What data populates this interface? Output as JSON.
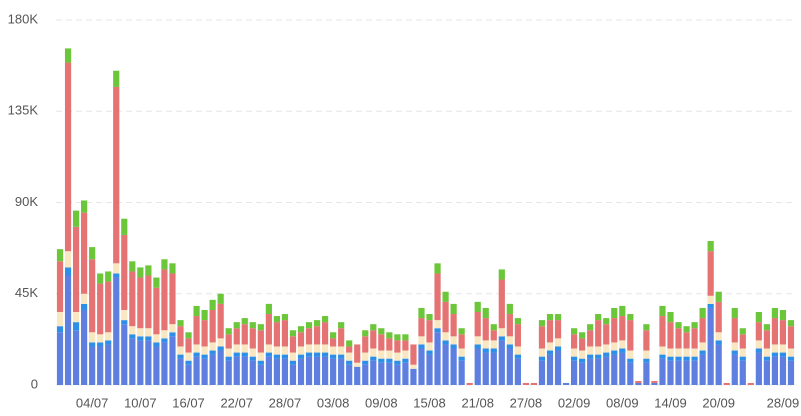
{
  "chart_data": {
    "type": "stacked_bar",
    "categories": [
      null,
      null,
      null,
      null,
      "04/07",
      null,
      null,
      null,
      null,
      null,
      "10/07",
      null,
      null,
      null,
      null,
      null,
      "16/07",
      null,
      null,
      null,
      null,
      null,
      "22/07",
      null,
      null,
      null,
      null,
      null,
      "28/07",
      null,
      null,
      null,
      null,
      null,
      "03/08",
      null,
      null,
      null,
      null,
      null,
      "09/08",
      null,
      null,
      null,
      null,
      null,
      "15/08",
      null,
      null,
      null,
      null,
      null,
      "21/08",
      null,
      null,
      null,
      null,
      null,
      "27/08",
      null,
      null,
      null,
      null,
      null,
      "02/09",
      null,
      null,
      null,
      null,
      null,
      "08/09",
      null,
      null,
      null,
      null,
      null,
      "14/09",
      null,
      null,
      null,
      null,
      null,
      "20/09",
      null,
      null,
      null,
      null,
      null,
      null,
      null,
      "28/09",
      null
    ],
    "series": [
      {
        "color": "#5e7fe0",
        "values": [
          26,
          54,
          27,
          37,
          19,
          19,
          20,
          53,
          30,
          23,
          22,
          22,
          19,
          21,
          24,
          13,
          10,
          14,
          13,
          15,
          17,
          12,
          14,
          14,
          12,
          10,
          14,
          13,
          13,
          10,
          13,
          14,
          14,
          14,
          13,
          13,
          10,
          9,
          10,
          12,
          11,
          11,
          10,
          11,
          8,
          18,
          15,
          26,
          20,
          18,
          12,
          0,
          18,
          16,
          16,
          22,
          18,
          13,
          0,
          0,
          12,
          15,
          17,
          1,
          12,
          11,
          13,
          13,
          14,
          15,
          16,
          11,
          1,
          11,
          1,
          13,
          12,
          12,
          12,
          12,
          15,
          38,
          20,
          0,
          15,
          12,
          0,
          16,
          12,
          14,
          14,
          12
        ]
      },
      {
        "color": "#2e8fe8",
        "values": [
          3,
          4,
          4,
          3,
          2,
          2,
          2,
          2,
          2,
          2,
          2,
          2,
          2,
          2,
          2,
          2,
          2,
          2,
          2,
          2,
          2,
          2,
          2,
          2,
          2,
          2,
          2,
          2,
          2,
          2,
          2,
          2,
          2,
          2,
          2,
          2,
          2,
          0,
          2,
          2,
          2,
          2,
          2,
          2,
          0,
          2,
          2,
          2,
          2,
          2,
          2,
          0,
          2,
          2,
          2,
          2,
          2,
          2,
          0,
          0,
          2,
          2,
          2,
          0,
          2,
          2,
          2,
          2,
          2,
          2,
          2,
          2,
          0,
          2,
          0,
          2,
          2,
          2,
          2,
          2,
          2,
          2,
          2,
          0,
          2,
          2,
          0,
          2,
          2,
          2,
          2,
          2
        ]
      },
      {
        "color": "#f8e7c0",
        "values": [
          7,
          8,
          5,
          5,
          5,
          4,
          4,
          5,
          5,
          4,
          4,
          4,
          4,
          4,
          4,
          4,
          4,
          4,
          4,
          4,
          4,
          4,
          4,
          4,
          4,
          4,
          4,
          4,
          4,
          4,
          4,
          4,
          4,
          4,
          4,
          4,
          4,
          2,
          4,
          4,
          4,
          4,
          4,
          4,
          2,
          4,
          4,
          4,
          4,
          4,
          4,
          0,
          4,
          4,
          4,
          4,
          4,
          4,
          0,
          0,
          4,
          4,
          4,
          0,
          4,
          4,
          4,
          4,
          4,
          4,
          4,
          4,
          0,
          4,
          0,
          4,
          4,
          4,
          4,
          4,
          4,
          4,
          4,
          0,
          4,
          4,
          0,
          4,
          4,
          4,
          4,
          4
        ]
      },
      {
        "color": "#e57373",
        "values": [
          25,
          93,
          42,
          40,
          36,
          25,
          25,
          87,
          37,
          27,
          25,
          26,
          23,
          30,
          25,
          10,
          7,
          14,
          13,
          16,
          17,
          7,
          8,
          10,
          10,
          11,
          15,
          12,
          13,
          8,
          7,
          8,
          9,
          11,
          4,
          9,
          3,
          9,
          8,
          9,
          8,
          6,
          6,
          5,
          10,
          9,
          11,
          23,
          15,
          11,
          7,
          1,
          12,
          11,
          5,
          24,
          11,
          11,
          1,
          1,
          11,
          11,
          9,
          0,
          7,
          6,
          8,
          13,
          10,
          12,
          12,
          15,
          1,
          10,
          1,
          15,
          13,
          10,
          8,
          10,
          12,
          22,
          15,
          1,
          12,
          7,
          1,
          9,
          9,
          13,
          12,
          11
        ]
      },
      {
        "color": "#6cc63a",
        "values": [
          6,
          7,
          8,
          6,
          6,
          5,
          5,
          8,
          8,
          5,
          5,
          5,
          5,
          5,
          5,
          3,
          3,
          5,
          5,
          5,
          5,
          3,
          3,
          3,
          3,
          3,
          5,
          3,
          3,
          3,
          3,
          3,
          3,
          3,
          3,
          3,
          3,
          0,
          3,
          3,
          3,
          3,
          3,
          3,
          0,
          5,
          3,
          5,
          5,
          5,
          3,
          0,
          5,
          5,
          3,
          5,
          5,
          3,
          0,
          0,
          3,
          3,
          3,
          0,
          3,
          3,
          3,
          3,
          3,
          5,
          5,
          3,
          0,
          3,
          0,
          5,
          5,
          3,
          3,
          3,
          5,
          5,
          5,
          0,
          5,
          3,
          0,
          5,
          3,
          5,
          5,
          3
        ]
      }
    ],
    "ylim": [
      0,
      180
    ],
    "yticks": [
      {
        "value": 0,
        "label": "0"
      },
      {
        "value": 45,
        "label": "45K"
      },
      {
        "value": 90,
        "label": "90K"
      },
      {
        "value": 135,
        "label": "135K"
      },
      {
        "value": 180,
        "label": "180K"
      }
    ],
    "grid": true
  }
}
